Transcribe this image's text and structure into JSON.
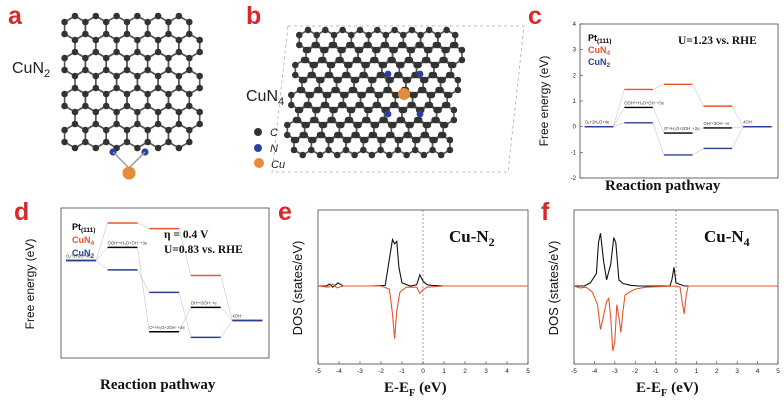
{
  "panels": {
    "a": {
      "letter": "a",
      "label": "CuN",
      "sub": "2"
    },
    "b": {
      "letter": "b",
      "label": "CuN",
      "sub": "4",
      "legend": [
        "C",
        "N",
        "Cu"
      ]
    },
    "c": {
      "letter": "c",
      "ylabel": "Free energy (eV)",
      "xlabel": "Reaction pathway",
      "cond": "U=1.23 vs. RHE",
      "legend": [
        {
          "name": "Pt",
          "sub": "(111)"
        },
        {
          "name": "CuN",
          "sub": "4"
        },
        {
          "name": "CuN",
          "sub": "2"
        }
      ],
      "steps": [
        "O₂+2H₂O+4e",
        "OOH*+H₂O+OH⁻+3e",
        "O*+H₂O+2OH⁻+2e",
        "OH*+3OH⁻+e",
        "4OH⁻"
      ]
    },
    "d": {
      "letter": "d",
      "ylabel": "Free energy (eV)",
      "xlabel": "Reaction pathway",
      "eta": "η = 0.4 V",
      "cond": "U=0.83 vs. RHE",
      "legend": [
        {
          "name": "Pt",
          "sub": "(111)"
        },
        {
          "name": "CuN",
          "sub": "4"
        },
        {
          "name": "CuN",
          "sub": "2"
        }
      ],
      "steps": [
        "O₂+2H₂O+4e",
        "OOH*+H₂O+OH⁻+3e",
        "O*+H₂O+2OH⁻+2e",
        "OH*+3OH⁻+e",
        "4OH⁻"
      ]
    },
    "e": {
      "letter": "e",
      "title": "Cu-N",
      "title_sub": "2",
      "ylabel": "DOS (states/eV)",
      "xlabel": "E-E",
      "xlabel_sub": "F",
      "xlabel_unit": "(eV)"
    },
    "f": {
      "letter": "f",
      "title": "Cu-N",
      "title_sub": "4",
      "ylabel": "DOS (states/eV)",
      "xlabel": "E-E",
      "xlabel_sub": "F",
      "xlabel_unit": "(eV)"
    }
  },
  "colors": {
    "letter": "#d7282a",
    "pt": "#000000",
    "cun4": "#e4562a",
    "cun2": "#2b3e95",
    "carbon": "#333333",
    "nitrogen": "#2c3fa8",
    "copper": "#e48c3b"
  },
  "chart_data": [
    {
      "panel": "c",
      "type": "line",
      "ylim": [
        -2,
        4
      ],
      "yticks": [
        -2,
        -1,
        0,
        1,
        2,
        3,
        4
      ],
      "series": [
        {
          "name": "Pt(111)",
          "values": [
            0,
            0.75,
            -0.25,
            -0.05,
            0
          ]
        },
        {
          "name": "CuN4",
          "values": [
            0,
            1.45,
            1.65,
            0.8,
            0
          ]
        },
        {
          "name": "CuN2",
          "values": [
            0,
            0.15,
            -1.1,
            -0.85,
            0
          ]
        }
      ]
    },
    {
      "panel": "d",
      "type": "line",
      "ylim": [
        -1,
        3
      ],
      "series": [
        {
          "name": "Pt(111)",
          "values": [
            1.6,
            1.95,
            -0.3,
            0.35,
            0
          ]
        },
        {
          "name": "CuN4",
          "values": [
            1.6,
            2.6,
            2.45,
            1.2,
            0
          ]
        },
        {
          "name": "CuN2",
          "values": [
            1.6,
            1.35,
            0.75,
            -0.45,
            0
          ]
        }
      ]
    },
    {
      "panel": "e",
      "type": "line",
      "xlim": [
        -5,
        5
      ],
      "xticks": [
        -5,
        -4,
        -3,
        -2,
        -1,
        0,
        1,
        2,
        3,
        4,
        5
      ],
      "fermi": 0,
      "series": [
        {
          "name": "black",
          "x": [
            -5,
            -4.6,
            -4.45,
            -4.3,
            -4.05,
            -3.8,
            -3.5,
            -2.5,
            -1.8,
            -1.55,
            -1.45,
            -1.35,
            -1.25,
            -1.15,
            -1.0,
            -0.6,
            -0.3,
            -0.15,
            0.0,
            0.2,
            0.45,
            1.0,
            5
          ],
          "y": [
            0,
            0,
            0.03,
            -0.02,
            0.05,
            0,
            0,
            0,
            0.01,
            0.55,
            0.75,
            0.68,
            0.72,
            0.3,
            0.05,
            0,
            0.02,
            0.18,
            0.08,
            0.02,
            0.01,
            0,
            0
          ]
        },
        {
          "name": "orange",
          "x": [
            -5,
            -4.5,
            -4.3,
            -4.1,
            -3.8,
            -3,
            -2,
            -1.6,
            -1.45,
            -1.35,
            -1.25,
            -1.1,
            -0.8,
            -0.3,
            -0.15,
            0,
            0.2,
            1,
            5
          ],
          "y": [
            0,
            -0.02,
            0.03,
            -0.03,
            0,
            0,
            0,
            -0.05,
            -0.45,
            -0.85,
            -0.4,
            -0.1,
            -0.02,
            -0.02,
            -0.12,
            -0.06,
            -0.02,
            0,
            0
          ]
        }
      ]
    },
    {
      "panel": "f",
      "type": "line",
      "xlim": [
        -5,
        5
      ],
      "xticks": [
        -5,
        -4,
        -3,
        -2,
        -1,
        0,
        1,
        2,
        3,
        4,
        5
      ],
      "fermi": 0,
      "series": [
        {
          "name": "black",
          "x": [
            -5,
            -4.5,
            -4.2,
            -3.9,
            -3.8,
            -3.7,
            -3.55,
            -3.4,
            -3.2,
            -3.05,
            -2.95,
            -2.8,
            -2.6,
            -2.2,
            -1.8,
            -1.4,
            -0.3,
            -0.2,
            -0.1,
            0,
            0.4,
            5
          ],
          "y": [
            0,
            0,
            0.05,
            0.2,
            0.7,
            0.85,
            0.4,
            0.1,
            0.35,
            0.78,
            0.7,
            0.1,
            0.04,
            0.01,
            0,
            0,
            0,
            0.1,
            0.3,
            0.05,
            0,
            0
          ]
        },
        {
          "name": "orange",
          "x": [
            -5,
            -4.7,
            -4.4,
            -4.1,
            -3.85,
            -3.7,
            -3.6,
            -3.4,
            -3.3,
            -3.2,
            -3.1,
            -3.0,
            -2.9,
            -2.8,
            -2.7,
            -2.6,
            -2.5,
            -2.3,
            -2,
            -1.5,
            0,
            0.2,
            0.3,
            0.4,
            0.5,
            0.6,
            5
          ],
          "y": [
            0,
            -0.03,
            -0.02,
            -0.1,
            -0.3,
            -0.7,
            -0.55,
            -0.25,
            -0.2,
            -0.5,
            -1.05,
            -0.9,
            -0.3,
            -0.5,
            -0.75,
            -0.4,
            -0.15,
            -0.1,
            -0.05,
            -0.02,
            0,
            -0.02,
            -0.25,
            -0.45,
            -0.15,
            0,
            0
          ]
        }
      ]
    }
  ]
}
